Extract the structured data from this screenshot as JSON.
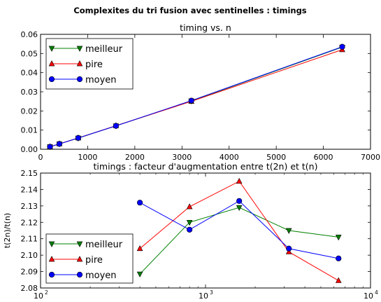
{
  "figure": {
    "suptitle": "Complexites du tri fusion avec sentinelles : timings"
  },
  "chart_data": [
    {
      "type": "line",
      "title": "timing vs. n",
      "xlabel": "",
      "ylabel": "",
      "xscale": "linear",
      "xlim": [
        0,
        7000
      ],
      "ylim": [
        0,
        0.06
      ],
      "xticks": [
        0,
        1000,
        2000,
        3000,
        4000,
        5000,
        6000,
        7000
      ],
      "xtick_labels": [
        "0",
        "1000",
        "2000",
        "3000",
        "4000",
        "5000",
        "6000",
        "7000"
      ],
      "yticks": [
        0,
        0.01,
        0.02,
        0.03,
        0.04,
        0.05,
        0.06
      ],
      "ytick_labels": [
        "0.00",
        "0.01",
        "0.02",
        "0.03",
        "0.04",
        "0.05",
        "0.06"
      ],
      "legend": "top-left",
      "grid": false,
      "x": [
        200,
        400,
        800,
        1600,
        3200,
        6400
      ],
      "series": [
        {
          "name": "meilleur",
          "color": "#008000",
          "marker": "triangle-down",
          "values": [
            0.0013,
            0.0028,
            0.0058,
            0.0122,
            0.0252,
            0.0533
          ]
        },
        {
          "name": "pire",
          "color": "#ff0000",
          "marker": "triangle-up",
          "values": [
            0.0013,
            0.0028,
            0.0059,
            0.0123,
            0.025,
            0.052
          ]
        },
        {
          "name": "moyen",
          "color": "#0000ff",
          "marker": "circle",
          "values": [
            0.0013,
            0.0028,
            0.0059,
            0.0122,
            0.0254,
            0.0535
          ]
        }
      ]
    },
    {
      "type": "line",
      "title": "timings : facteur d'augmentation entre t(2n) et t(n)",
      "xlabel": "",
      "ylabel": "t(2n)/t(n)",
      "xscale": "log",
      "xlim": [
        100,
        10000
      ],
      "ylim": [
        2.08,
        2.15
      ],
      "xticks": [
        100,
        1000,
        10000
      ],
      "xtick_labels": [
        {
          "base": "10",
          "exp": "2"
        },
        {
          "base": "10",
          "exp": "3"
        },
        {
          "base": "10",
          "exp": "4"
        }
      ],
      "yticks": [
        2.08,
        2.09,
        2.1,
        2.11,
        2.12,
        2.13,
        2.14,
        2.15
      ],
      "ytick_labels": [
        "2.08",
        "2.09",
        "2.10",
        "2.11",
        "2.12",
        "2.13",
        "2.14",
        "2.15"
      ],
      "legend": "bottom-left",
      "grid": false,
      "x": [
        400,
        800,
        1600,
        3200,
        6400
      ],
      "series": [
        {
          "name": "meilleur",
          "color": "#008000",
          "marker": "triangle-down",
          "values": [
            2.0885,
            2.12,
            2.129,
            2.115,
            2.111
          ]
        },
        {
          "name": "pire",
          "color": "#ff0000",
          "marker": "triangle-up",
          "values": [
            2.104,
            2.1295,
            2.145,
            2.102,
            2.0845
          ]
        },
        {
          "name": "moyen",
          "color": "#0000ff",
          "marker": "circle",
          "values": [
            2.132,
            2.1155,
            2.133,
            2.104,
            2.098
          ]
        }
      ]
    }
  ]
}
